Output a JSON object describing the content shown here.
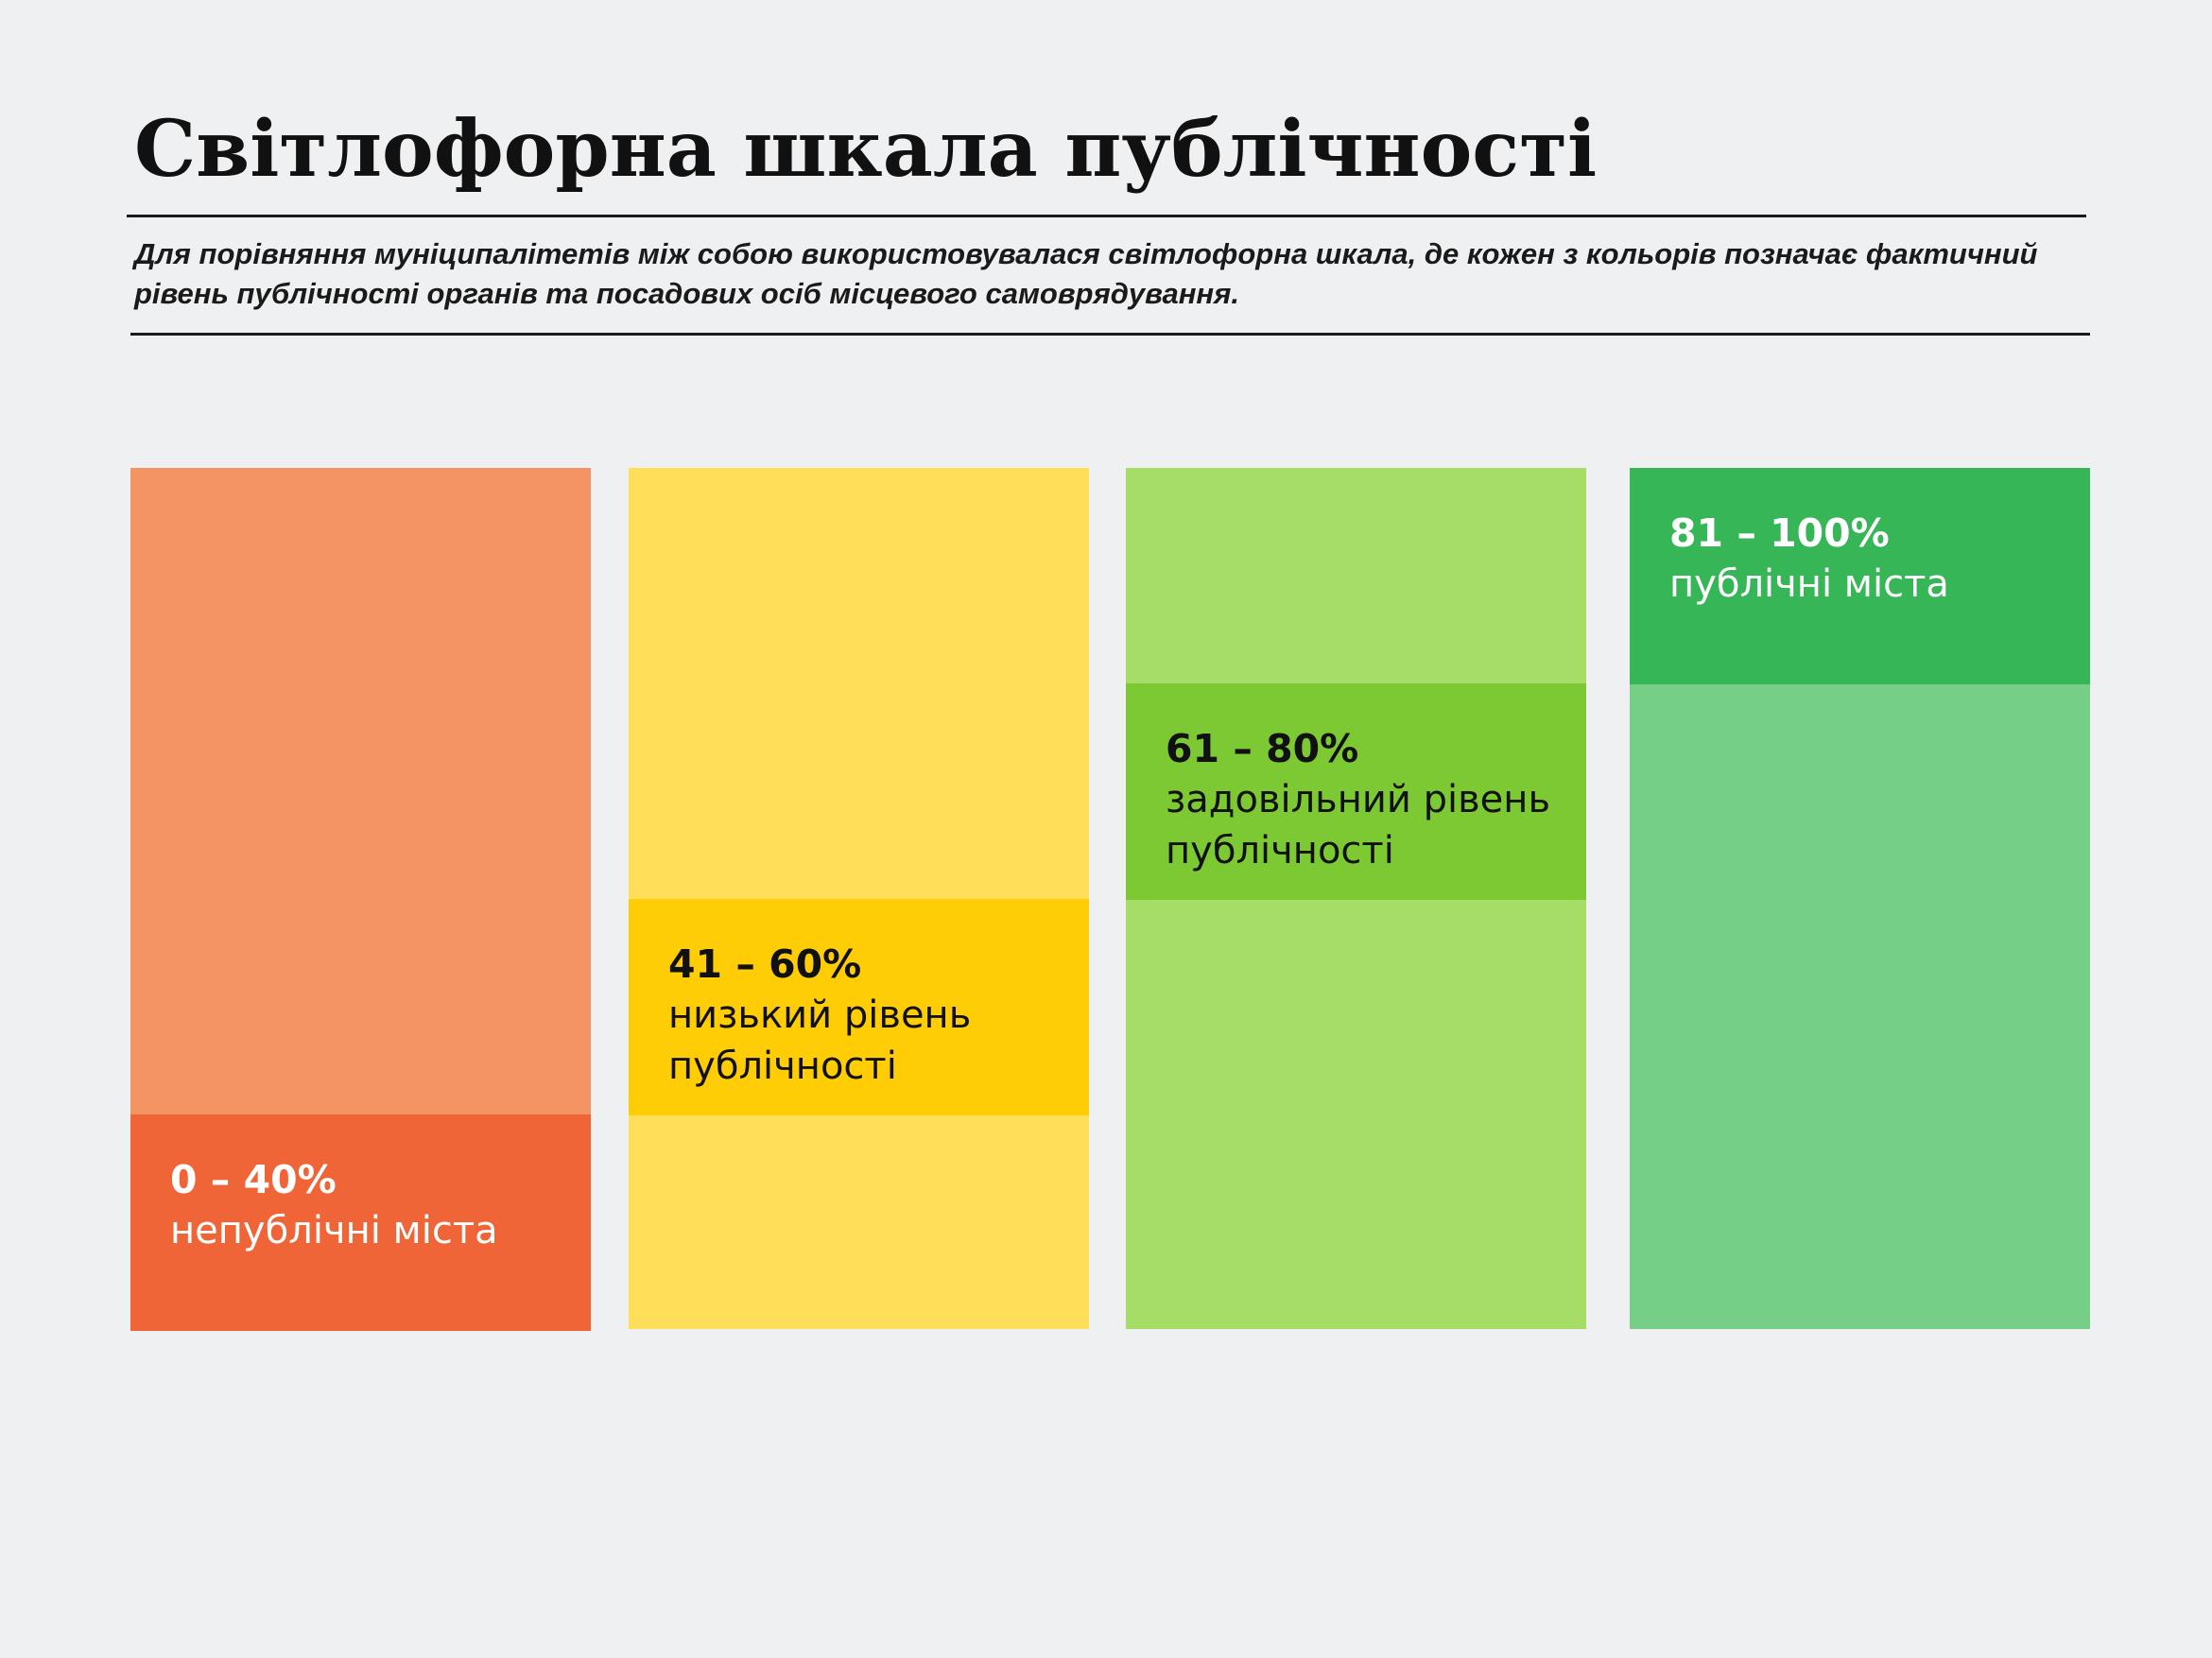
{
  "title": "Світлофорна шкала публічності",
  "subtitle": "Для порівняння муніципалітетів між собою використовувалася світлофорна шкала, де кожен з кольорів позначає фактичний рівень публічності органів та посадових осіб місцевого самоврядування.",
  "scale": [
    {
      "range": "0 – 40%",
      "label": "непублічні міста",
      "fill_color": "#f49462",
      "band_color": "#f06538",
      "text_color": "#ffffff"
    },
    {
      "range": "41 – 60%",
      "label": "низький рівень публічності",
      "fill_color": "#ffdf5a",
      "band_color": "#ffcd05",
      "text_color": "#111111"
    },
    {
      "range": "61 – 80%",
      "label": "задовільний рівень публічності",
      "fill_color": "#a6dd67",
      "band_color": "#7cc934",
      "text_color": "#111111"
    },
    {
      "range": "81 – 100%",
      "label": "публічні міста",
      "fill_color": "#76cf86",
      "band_color": "#37b658",
      "text_color": "#ffffff"
    }
  ]
}
